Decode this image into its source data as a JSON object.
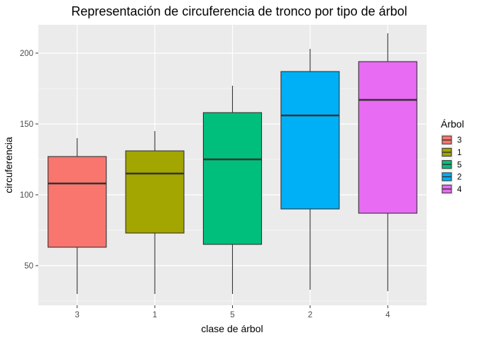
{
  "chart_data": {
    "type": "boxplot",
    "title": "Representación de circuferencia de tronco por tipo de árbol",
    "xlabel": "clase de árbol",
    "ylabel": "circuferencia",
    "ylim": [
      22,
      220
    ],
    "y_ticks": [
      50,
      100,
      150,
      200
    ],
    "grid": true,
    "legend": {
      "title": "Árbol",
      "position": "right"
    },
    "categories": [
      "3",
      "1",
      "5",
      "2",
      "4"
    ],
    "series": [
      {
        "name": "3",
        "color": "#F8766D",
        "min": 30,
        "q1": 63,
        "median": 108,
        "q3": 127,
        "max": 140
      },
      {
        "name": "1",
        "color": "#A3A500",
        "min": 30,
        "q1": 73,
        "median": 115,
        "q3": 131,
        "max": 145
      },
      {
        "name": "5",
        "color": "#00BF7D",
        "min": 30,
        "q1": 65,
        "median": 125,
        "q3": 158,
        "max": 177
      },
      {
        "name": "2",
        "color": "#00B0F6",
        "min": 33,
        "q1": 90,
        "median": 156,
        "q3": 187,
        "max": 203
      },
      {
        "name": "4",
        "color": "#E76BF3",
        "min": 32,
        "q1": 87,
        "median": 167,
        "q3": 194,
        "max": 214
      }
    ]
  }
}
